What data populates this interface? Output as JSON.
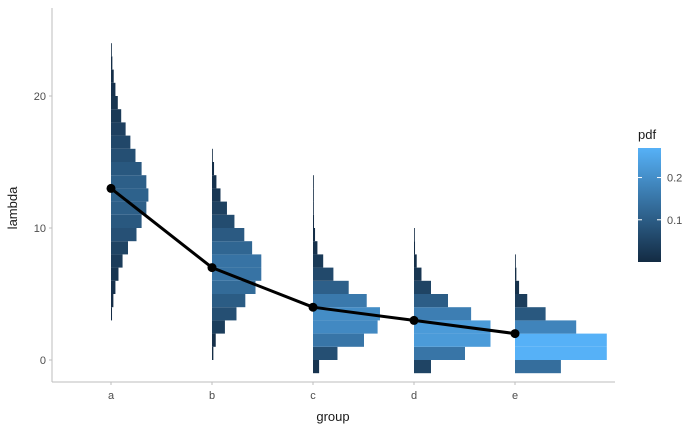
{
  "chart_data": {
    "type": "bar",
    "subtype": "horizontal-histogram-by-group-with-mean-line",
    "title": "",
    "xlabel": "group",
    "ylabel": "lambda",
    "categories": [
      "a",
      "b",
      "c",
      "d",
      "e"
    ],
    "ylim": [
      -1,
      26
    ],
    "yticks": [
      0,
      10,
      20
    ],
    "grid": false,
    "mean_line": {
      "color": "#000000",
      "values": [
        13,
        7,
        4,
        3,
        2
      ]
    },
    "bin_width": 1,
    "histograms": [
      {
        "group": "a",
        "bins": [
          {
            "y": 3.5,
            "pdf": 0.003
          },
          {
            "y": 4.5,
            "pdf": 0.007
          },
          {
            "y": 5.5,
            "pdf": 0.013
          },
          {
            "y": 6.5,
            "pdf": 0.022
          },
          {
            "y": 7.5,
            "pdf": 0.034
          },
          {
            "y": 8.5,
            "pdf": 0.05
          },
          {
            "y": 9.5,
            "pdf": 0.075
          },
          {
            "y": 10.5,
            "pdf": 0.09
          },
          {
            "y": 11.5,
            "pdf": 0.104
          },
          {
            "y": 12.5,
            "pdf": 0.11
          },
          {
            "y": 13.5,
            "pdf": 0.104
          },
          {
            "y": 14.5,
            "pdf": 0.09
          },
          {
            "y": 15.5,
            "pdf": 0.072
          },
          {
            "y": 16.5,
            "pdf": 0.057
          },
          {
            "y": 17.5,
            "pdf": 0.043
          },
          {
            "y": 18.5,
            "pdf": 0.03
          },
          {
            "y": 19.5,
            "pdf": 0.02
          },
          {
            "y": 20.5,
            "pdf": 0.013
          },
          {
            "y": 21.5,
            "pdf": 0.008
          },
          {
            "y": 22.5,
            "pdf": 0.004
          },
          {
            "y": 23.5,
            "pdf": 0.002
          }
        ]
      },
      {
        "group": "b",
        "bins": [
          {
            "y": 0.5,
            "pdf": 0.004
          },
          {
            "y": 1.5,
            "pdf": 0.011
          },
          {
            "y": 2.5,
            "pdf": 0.038
          },
          {
            "y": 3.5,
            "pdf": 0.072
          },
          {
            "y": 4.5,
            "pdf": 0.098
          },
          {
            "y": 5.5,
            "pdf": 0.128
          },
          {
            "y": 6.5,
            "pdf": 0.145
          },
          {
            "y": 7.5,
            "pdf": 0.145
          },
          {
            "y": 8.5,
            "pdf": 0.118
          },
          {
            "y": 9.5,
            "pdf": 0.095
          },
          {
            "y": 10.5,
            "pdf": 0.066
          },
          {
            "y": 11.5,
            "pdf": 0.044
          },
          {
            "y": 12.5,
            "pdf": 0.025
          },
          {
            "y": 13.5,
            "pdf": 0.013
          },
          {
            "y": 14.5,
            "pdf": 0.006
          },
          {
            "y": 15.5,
            "pdf": 0.002
          }
        ]
      },
      {
        "group": "c",
        "bins": [
          {
            "y": -0.5,
            "pdf": 0.018
          },
          {
            "y": 0.5,
            "pdf": 0.072
          },
          {
            "y": 1.5,
            "pdf": 0.15
          },
          {
            "y": 2.5,
            "pdf": 0.19
          },
          {
            "y": 3.5,
            "pdf": 0.197
          },
          {
            "y": 4.5,
            "pdf": 0.158
          },
          {
            "y": 5.5,
            "pdf": 0.105
          },
          {
            "y": 6.5,
            "pdf": 0.06
          },
          {
            "y": 7.5,
            "pdf": 0.03
          },
          {
            "y": 8.5,
            "pdf": 0.013
          },
          {
            "y": 9.5,
            "pdf": 0.006
          },
          {
            "y": 10.5,
            "pdf": 0.003
          },
          {
            "y": 11.5,
            "pdf": 0.001
          },
          {
            "y": 12.5,
            "pdf": 0.0005
          },
          {
            "y": 13.5,
            "pdf": 0.0002
          }
        ]
      },
      {
        "group": "d",
        "bins": [
          {
            "y": -0.5,
            "pdf": 0.05
          },
          {
            "y": 0.5,
            "pdf": 0.15
          },
          {
            "y": 1.5,
            "pdf": 0.225
          },
          {
            "y": 2.5,
            "pdf": 0.225
          },
          {
            "y": 3.5,
            "pdf": 0.168
          },
          {
            "y": 4.5,
            "pdf": 0.1
          },
          {
            "y": 5.5,
            "pdf": 0.05
          },
          {
            "y": 6.5,
            "pdf": 0.022
          },
          {
            "y": 7.5,
            "pdf": 0.008
          },
          {
            "y": 8.5,
            "pdf": 0.003
          },
          {
            "y": 9.5,
            "pdf": 0.001
          }
        ]
      },
      {
        "group": "e",
        "bins": [
          {
            "y": -0.5,
            "pdf": 0.135
          },
          {
            "y": 0.5,
            "pdf": 0.27
          },
          {
            "y": 1.5,
            "pdf": 0.27
          },
          {
            "y": 2.5,
            "pdf": 0.18
          },
          {
            "y": 3.5,
            "pdf": 0.09
          },
          {
            "y": 4.5,
            "pdf": 0.036
          },
          {
            "y": 5.5,
            "pdf": 0.012
          },
          {
            "y": 6.5,
            "pdf": 0.004
          },
          {
            "y": 7.5,
            "pdf": 0.001
          }
        ]
      }
    ],
    "legend": {
      "title": "pdf",
      "position": "right",
      "ticks": [
        0.1,
        0.2
      ],
      "range": [
        0,
        0.27
      ],
      "color_low": "#132B43",
      "color_high": "#56B1F7"
    }
  }
}
